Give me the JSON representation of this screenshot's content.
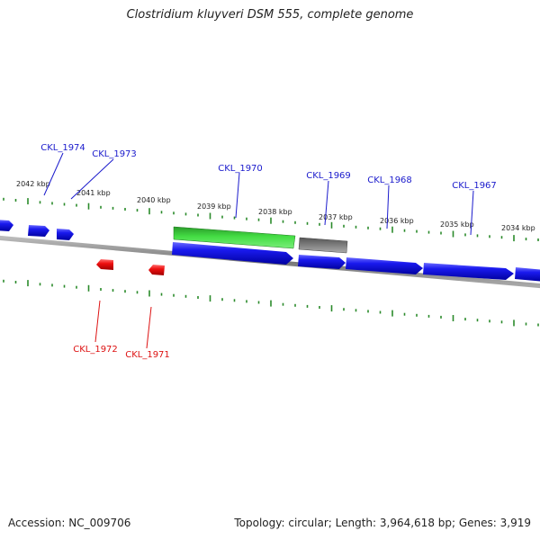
{
  "title": "Clostridium kluyveri DSM 555, complete genome",
  "footer": {
    "accession": "Accession: NC_009706",
    "topology": "Topology: circular; Length: 3,964,618 bp; Genes: 3,919"
  },
  "colors": {
    "forward_gene": "#1010e0",
    "reverse_gene": "#e01010",
    "forward_label": "#1a1acc",
    "reverse_label": "#dd1111",
    "highlight_feature": "#33cc33",
    "grey_feature": "#777777",
    "tick": "#2a8a2a",
    "backbone": "#888888"
  },
  "kbp_labels": [
    "2042 kbp",
    "2041 kbp",
    "2040 kbp",
    "2039 kbp",
    "2038 kbp",
    "2037 kbp",
    "2036 kbp",
    "2035 kbp",
    "2034 kbp"
  ],
  "forward_genes": [
    "CKL_1974",
    "CKL_1973",
    "CKL_1970",
    "CKL_1969",
    "CKL_1968",
    "CKL_1967"
  ],
  "reverse_genes": [
    "CKL_1972",
    "CKL_1971"
  ]
}
